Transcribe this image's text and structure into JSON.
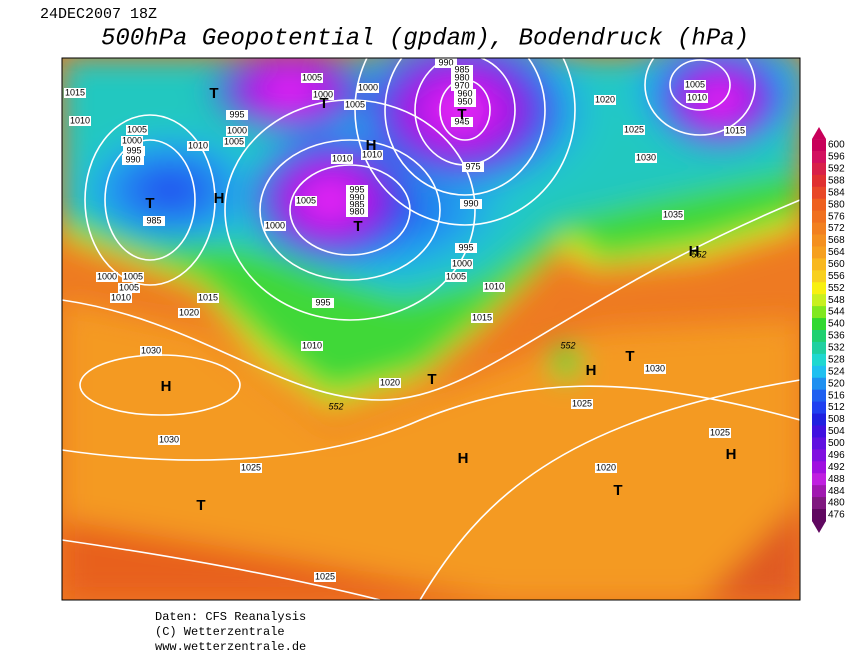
{
  "header": {
    "date": "24DEC2007 18Z",
    "title": "500hPa Geopotential (gpdam), Bodendruck (hPa)"
  },
  "footer": {
    "source": "Daten: CFS Reanalysis",
    "copyright": "(C) Wetterzentrale",
    "url": "www.wetterzentrale.de"
  },
  "colorbar": {
    "levels": [
      600,
      596,
      592,
      588,
      584,
      580,
      576,
      572,
      568,
      564,
      560,
      556,
      552,
      548,
      544,
      540,
      536,
      532,
      528,
      524,
      520,
      516,
      512,
      508,
      504,
      500,
      496,
      492,
      488,
      484,
      480,
      476
    ],
    "colors": [
      "#c8005a",
      "#d2105f",
      "#d82048",
      "#e03030",
      "#e84828",
      "#ee6020",
      "#f07020",
      "#f28020",
      "#f49020",
      "#f6a020",
      "#f8b820",
      "#f8d020",
      "#f8f010",
      "#c8f020",
      "#80e820",
      "#30d830",
      "#20d070",
      "#20d0a0",
      "#20d8d0",
      "#20c0f0",
      "#2090f0",
      "#2060f0",
      "#2040f0",
      "#2020e0",
      "#4010e0",
      "#6010e0",
      "#8010e0",
      "#a010e0",
      "#c020e0",
      "#a018b0",
      "#801880",
      "#600860"
    ]
  },
  "map": {
    "isobar_labels": [
      1015,
      1010,
      1005,
      1000,
      995,
      990,
      985,
      1010,
      1005,
      995,
      1000,
      1005,
      1000,
      1005,
      1000,
      1010,
      1010,
      995,
      990,
      985,
      980,
      1005,
      1000,
      990,
      985,
      980,
      970,
      960,
      950,
      945,
      975,
      990,
      995,
      1000,
      1005,
      1010,
      1015,
      1020,
      1025,
      1030,
      1035,
      1005,
      1010,
      1015,
      1000,
      1005,
      1005,
      1010,
      1015,
      1020,
      995,
      1010,
      1020,
      1030,
      1030,
      1025,
      1025,
      1025,
      1020,
      1030,
      1025
    ],
    "contour_labels": [
      552,
      552,
      552
    ],
    "centers": [
      "T",
      "T",
      "H",
      "H",
      "T",
      "T",
      "T",
      "H",
      "H",
      "T",
      "H",
      "T",
      "H",
      "T",
      "H",
      "T"
    ]
  }
}
